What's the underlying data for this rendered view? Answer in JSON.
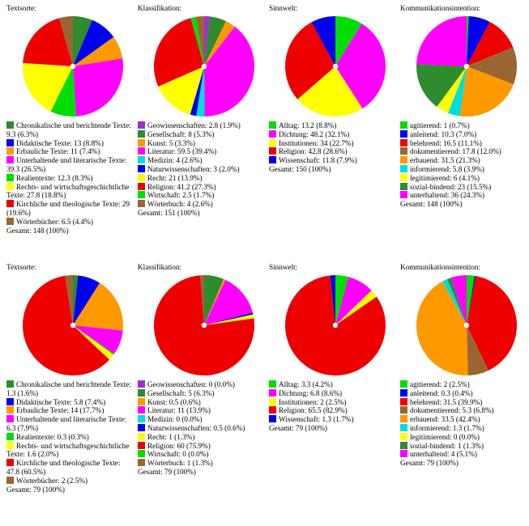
{
  "chart_data": [
    {
      "type": "pie",
      "title": "Textsorte:",
      "total": "Gesamt: 148 (100%)",
      "slices": [
        {
          "label": "Chronikalische und berichtende Texte: 9.3 (6.3%)",
          "value": 9.3,
          "color": "#2e8b2e"
        },
        {
          "label": "Didaktische Texte: 13 (8.8%)",
          "value": 13,
          "color": "#0000ee"
        },
        {
          "label": "Erbauliche Texte: 11 (7.4%)",
          "value": 11,
          "color": "#ff9900"
        },
        {
          "label": "Unterhaltende und literarische Texte: 39.3 (26.5%)",
          "value": 39.3,
          "color": "#ff00ff"
        },
        {
          "label": "Realientexte: 12.3 (8.3%)",
          "value": 12.3,
          "color": "#00dd00"
        },
        {
          "label": "Rechts- und wirtschaftsgeschichtliche Texte: 27.8 (18.8%)",
          "value": 27.8,
          "color": "#ffff00"
        },
        {
          "label": "Kirchliche und theologische Texte: 29 (19.6%)",
          "value": 29,
          "color": "#ee0000"
        },
        {
          "label": "Wörterbücher: 6.5 (4.4%)",
          "value": 6.5,
          "color": "#996633"
        }
      ]
    },
    {
      "type": "pie",
      "title": "Klassifikation:",
      "total": "Gesamt: 151 (100%)",
      "slices": [
        {
          "label": "Geowissenschaften: 2.8 (1.9%)",
          "value": 2.8,
          "color": "#9933cc"
        },
        {
          "label": "Gesellschaft: 8 (5.3%)",
          "value": 8,
          "color": "#2e8b2e"
        },
        {
          "label": "Kunst: 5 (3.3%)",
          "value": 5,
          "color": "#ff9900"
        },
        {
          "label": "Literatur: 59.5 (39.4%)",
          "value": 59.5,
          "color": "#ff00ff"
        },
        {
          "label": "Medizin: 4 (2.6%)",
          "value": 4,
          "color": "#00dddd"
        },
        {
          "label": "Naturwissenschaften: 3 (2.0%)",
          "value": 3,
          "color": "#0000ee"
        },
        {
          "label": "Recht: 21 (13.9%)",
          "value": 21,
          "color": "#ffff00"
        },
        {
          "label": "Religion: 41.2 (27.3%)",
          "value": 41.2,
          "color": "#ee0000"
        },
        {
          "label": "Wirtschaft: 2.5 (1.7%)",
          "value": 2.5,
          "color": "#00dd00"
        },
        {
          "label": "Wörterbuch: 4 (2.6%)",
          "value": 4,
          "color": "#996633"
        }
      ]
    },
    {
      "type": "pie",
      "title": "Sinnwelt:",
      "total": "Gesamt: 150 (100%)",
      "slices": [
        {
          "label": "Alltag: 13.2 (8.8%)",
          "value": 13.2,
          "color": "#00dd00"
        },
        {
          "label": "Dichtung: 48.2 (32.1%)",
          "value": 48.2,
          "color": "#ff00ff"
        },
        {
          "label": "Institutionen: 34 (22.7%)",
          "value": 34,
          "color": "#ffff00"
        },
        {
          "label": "Religion: 42.8 (28.6%)",
          "value": 42.8,
          "color": "#ee0000"
        },
        {
          "label": "Wissenschaft: 11.8 (7.9%)",
          "value": 11.8,
          "color": "#0000ee"
        }
      ]
    },
    {
      "type": "pie",
      "title": "Kommunikationsintention:",
      "total": "Gesamt: 148 (100%)",
      "slices": [
        {
          "label": "agitierend: 1 (0.7%)",
          "value": 1,
          "color": "#00dd00"
        },
        {
          "label": "anleitend: 10.3 (7.0%)",
          "value": 10.3,
          "color": "#0000ee"
        },
        {
          "label": "belehrend: 16.5 (11.1%)",
          "value": 16.5,
          "color": "#ee0000"
        },
        {
          "label": "dokumentierend: 17.8 (12.0%)",
          "value": 17.8,
          "color": "#996633"
        },
        {
          "label": "erbauend: 31.5 (21.3%)",
          "value": 31.5,
          "color": "#ff9900"
        },
        {
          "label": "informierend: 5.8 (3.9%)",
          "value": 5.8,
          "color": "#00dddd"
        },
        {
          "label": "legitimierend: 6 (4.1%)",
          "value": 6,
          "color": "#ffff00"
        },
        {
          "label": "sozial-bindend: 23 (15.5%)",
          "value": 23,
          "color": "#2e8b2e"
        },
        {
          "label": "unterhaltend: 36 (24.3%)",
          "value": 36,
          "color": "#ff00ff"
        }
      ]
    },
    {
      "type": "pie",
      "title": "Textsorte:",
      "total": "Gesamt: 79 (100%)",
      "slices": [
        {
          "label": "Chronikalische und berichtende Texte: 1.3 (1.6%)",
          "value": 1.3,
          "color": "#2e8b2e"
        },
        {
          "label": "Didaktische Texte: 5.8 (7.4%)",
          "value": 5.8,
          "color": "#0000ee"
        },
        {
          "label": "Erbauliche Texte: 14 (17.7%)",
          "value": 14,
          "color": "#ff9900"
        },
        {
          "label": "Unterhaltende und literarische Texte: 6.3 (7.9%)",
          "value": 6.3,
          "color": "#ff00ff"
        },
        {
          "label": "Realientexte: 0.3 (0.3%)",
          "value": 0.3,
          "color": "#00dd00"
        },
        {
          "label": "Rechts- und wirtschaftsgeschichtliche Texte: 1.6 (2.0%)",
          "value": 1.6,
          "color": "#ffff00"
        },
        {
          "label": "Kirchliche und theologische Texte: 47.8 (60.5%)",
          "value": 47.8,
          "color": "#ee0000"
        },
        {
          "label": "Wörterbücher: 2 (2.5%)",
          "value": 2,
          "color": "#996633"
        }
      ]
    },
    {
      "type": "pie",
      "title": "Klassifikation:",
      "total": "Gesamt: 79 (100%)",
      "slices": [
        {
          "label": "Geowissenschaften: 0 (0.0%)",
          "value": 0,
          "color": "#9933cc"
        },
        {
          "label": "Gesellschaft: 5 (6.3%)",
          "value": 5,
          "color": "#2e8b2e"
        },
        {
          "label": "Kunst: 0.5 (0.6%)",
          "value": 0.5,
          "color": "#ff9900"
        },
        {
          "label": "Literatur: 11 (13.9%)",
          "value": 11,
          "color": "#ff00ff"
        },
        {
          "label": "Medizin: 0 (0.0%)",
          "value": 0,
          "color": "#00dddd"
        },
        {
          "label": "Naturwissenschaften: 0.5 (0.6%)",
          "value": 0.5,
          "color": "#0000ee"
        },
        {
          "label": "Recht: 1 (1.3%)",
          "value": 1,
          "color": "#ffff00"
        },
        {
          "label": "Religion: 60 (75.9%)",
          "value": 60,
          "color": "#ee0000"
        },
        {
          "label": "Wirtschaft: 0 (0.0%)",
          "value": 0,
          "color": "#00dd00"
        },
        {
          "label": "Wörterbuch: 1 (1.3%)",
          "value": 1,
          "color": "#996633"
        }
      ]
    },
    {
      "type": "pie",
      "title": "Sinnwelt:",
      "total": "Gesamt: 79 (100%)",
      "slices": [
        {
          "label": "Alltag: 3.3 (4.2%)",
          "value": 3.3,
          "color": "#00dd00"
        },
        {
          "label": "Dichtung: 6.8 (8.6%)",
          "value": 6.8,
          "color": "#ff00ff"
        },
        {
          "label": "Institutionen: 2 (2.5%)",
          "value": 2,
          "color": "#ffff00"
        },
        {
          "label": "Religion: 65.5 (82.9%)",
          "value": 65.5,
          "color": "#ee0000"
        },
        {
          "label": "Wissenschaft: 1.3 (1.7%)",
          "value": 1.3,
          "color": "#0000ee"
        }
      ]
    },
    {
      "type": "pie",
      "title": "Kommunikationsintention:",
      "total": "Gesamt: 79 (100%)",
      "slices": [
        {
          "label": "agitierend: 2 (2.5%)",
          "value": 2,
          "color": "#00dd00"
        },
        {
          "label": "anleitend: 0.3 (0.4%)",
          "value": 0.3,
          "color": "#0000ee"
        },
        {
          "label": "belehrend: 31.5 (39.9%)",
          "value": 31.5,
          "color": "#ee0000"
        },
        {
          "label": "dokumentierend: 5.3 (6.8%)",
          "value": 5.3,
          "color": "#996633"
        },
        {
          "label": "erbauend: 33.5 (42.4%)",
          "value": 33.5,
          "color": "#ff9900"
        },
        {
          "label": "informierend: 1.3 (1.7%)",
          "value": 1.3,
          "color": "#00dddd"
        },
        {
          "label": "legitimierend: 0 (0.0%)",
          "value": 0,
          "color": "#ffff00"
        },
        {
          "label": "sozial-bindend: 1 (1.3%)",
          "value": 1,
          "color": "#2e8b2e"
        },
        {
          "label": "unterhaltend: 4 (5.1%)",
          "value": 4,
          "color": "#ff00ff"
        }
      ]
    }
  ]
}
